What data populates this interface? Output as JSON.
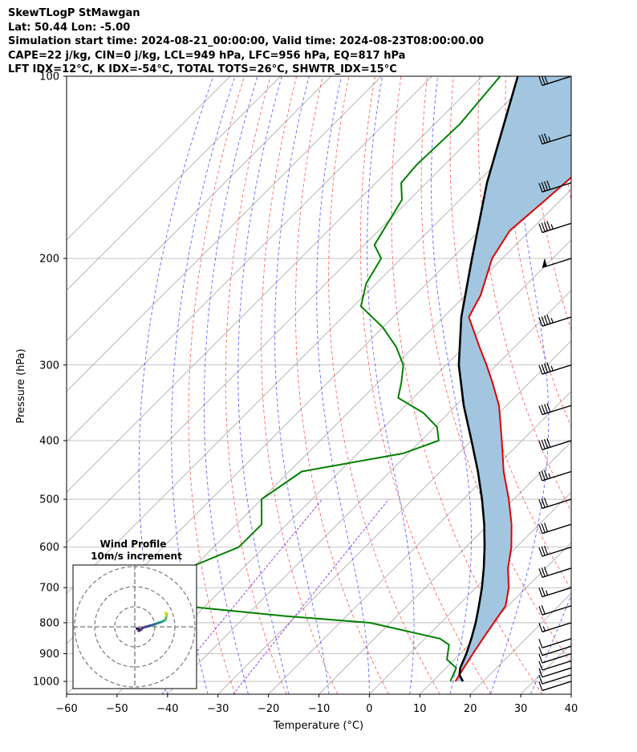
{
  "header": {
    "title_line1": "SkewTLogP StMawgan",
    "title_line2": "Lat: 50.44   Lon: -5.00",
    "title_line3": "Simulation start time: 2024-08-21_00:00:00, Valid time: 2024-08-23T08:00:00.00",
    "title_line4": "CAPE=22 j/kg, CIN=0 j/kg, LCL=949 hPa, LFC=956 hPa, EQ=817 hPa",
    "title_line5": "LFT IDX=12°C, K IDX=-54°C, TOTAL TOTS=26°C, SHWTR_IDX=15°C"
  },
  "colors": {
    "temperature": "#e00000",
    "dewpoint": "#008000",
    "parcel": "#000000",
    "cape_fill": "#a2c6df",
    "dry_adiabat": "#ff3333",
    "moist_adiabat": "#3333ff",
    "mixing_ratio": "#8a2be2",
    "isotherm": "#999999",
    "grid": "#b0b0b0"
  },
  "chart_data": {
    "type": "line",
    "xlabel": "Temperature (°C)",
    "ylabel": "Pressure (hPa)",
    "xlim": [
      -60,
      40
    ],
    "ylim": [
      1050,
      100
    ],
    "y_scale": "log",
    "skew": true,
    "grid": true,
    "x_ticks": [
      -60,
      -50,
      -40,
      -30,
      -20,
      -10,
      0,
      10,
      20,
      30,
      40
    ],
    "y_ticks": [
      1000,
      900,
      800,
      700,
      600,
      500,
      400,
      300,
      200,
      100
    ],
    "temperature": {
      "p": [
        1000,
        950,
        925,
        900,
        850,
        800,
        750,
        700,
        650,
        600,
        550,
        500,
        450,
        400,
        350,
        320,
        300,
        280,
        250,
        230,
        200,
        180,
        160,
        140,
        120,
        100
      ],
      "t": [
        14.5,
        13.5,
        13.0,
        12.5,
        11.5,
        10.5,
        9.5,
        6.5,
        2.5,
        -1.0,
        -5.5,
        -11.0,
        -17.5,
        -24.0,
        -31.5,
        -37.5,
        -42.0,
        -47.0,
        -55.0,
        -57.0,
        -62.0,
        -64.0,
        -63.0,
        -62.0,
        -64.5,
        -68.5
      ]
    },
    "dewpoint": {
      "p": [
        1000,
        950,
        920,
        900,
        870,
        850,
        800,
        780,
        750,
        700,
        680,
        650,
        600,
        550,
        500,
        450,
        420,
        400,
        380,
        360,
        340,
        320,
        300,
        280,
        260,
        240,
        220,
        200,
        190,
        160,
        150,
        140,
        120,
        100
      ],
      "t": [
        13.5,
        12.0,
        8.5,
        7.5,
        6.0,
        3.0,
        -14.0,
        -32.0,
        -55.0,
        -68.0,
        -72.0,
        -61.0,
        -55.0,
        -55.0,
        -60.0,
        -57.5,
        -41.0,
        -36.5,
        -39.5,
        -45.0,
        -53.0,
        -55.5,
        -58.5,
        -63.5,
        -70.0,
        -78.5,
        -82.0,
        -84.0,
        -88.0,
        -91.5,
        -95.0,
        -95.5,
        -95.0,
        -96.5
      ]
    },
    "parcel": {
      "p": [
        1000,
        975,
        950,
        900,
        850,
        800,
        750,
        700,
        650,
        600,
        550,
        500,
        450,
        400,
        350,
        300,
        250,
        200,
        150,
        100
      ],
      "t": [
        16.0,
        14.0,
        12.8,
        11.2,
        9.2,
        6.9,
        4.2,
        1.2,
        -2.3,
        -6.3,
        -10.9,
        -16.3,
        -22.6,
        -30.0,
        -38.5,
        -47.5,
        -56.5,
        -66.0,
        -78.0,
        -93.0
      ]
    },
    "wind_barbs": {
      "p": [
        1000,
        975,
        950,
        925,
        900,
        875,
        850,
        800,
        750,
        700,
        650,
        600,
        550,
        500,
        450,
        400,
        350,
        300,
        250,
        200,
        175,
        150,
        125,
        100
      ],
      "speed_kt": [
        10,
        10,
        10,
        10,
        10,
        10,
        10,
        15,
        20,
        25,
        30,
        30,
        30,
        30,
        35,
        40,
        40,
        45,
        45,
        50,
        45,
        40,
        35,
        30
      ],
      "direction_deg": [
        290,
        290,
        290,
        290,
        290,
        290,
        290,
        290,
        290,
        290,
        290,
        290,
        290,
        290,
        290,
        290,
        290,
        290,
        290,
        290,
        290,
        290,
        290,
        290
      ]
    },
    "hodograph": {
      "title": "Wind Profile",
      "subtitle": "10m/s increment",
      "u": [
        1.0,
        1.5,
        2.2,
        2.0,
        3.0,
        4.0,
        5.5,
        7.5,
        9.0,
        10.5,
        12.0,
        13.5,
        14.5,
        15.3,
        15.6,
        15.8,
        16.0,
        15.2,
        15.5
      ],
      "v": [
        -0.8,
        -1.2,
        -1.0,
        -2.0,
        -1.5,
        -0.5,
        0.0,
        0.5,
        1.0,
        1.5,
        2.0,
        2.5,
        3.0,
        3.5,
        4.5,
        5.5,
        6.5,
        6.8,
        7.0
      ]
    }
  }
}
